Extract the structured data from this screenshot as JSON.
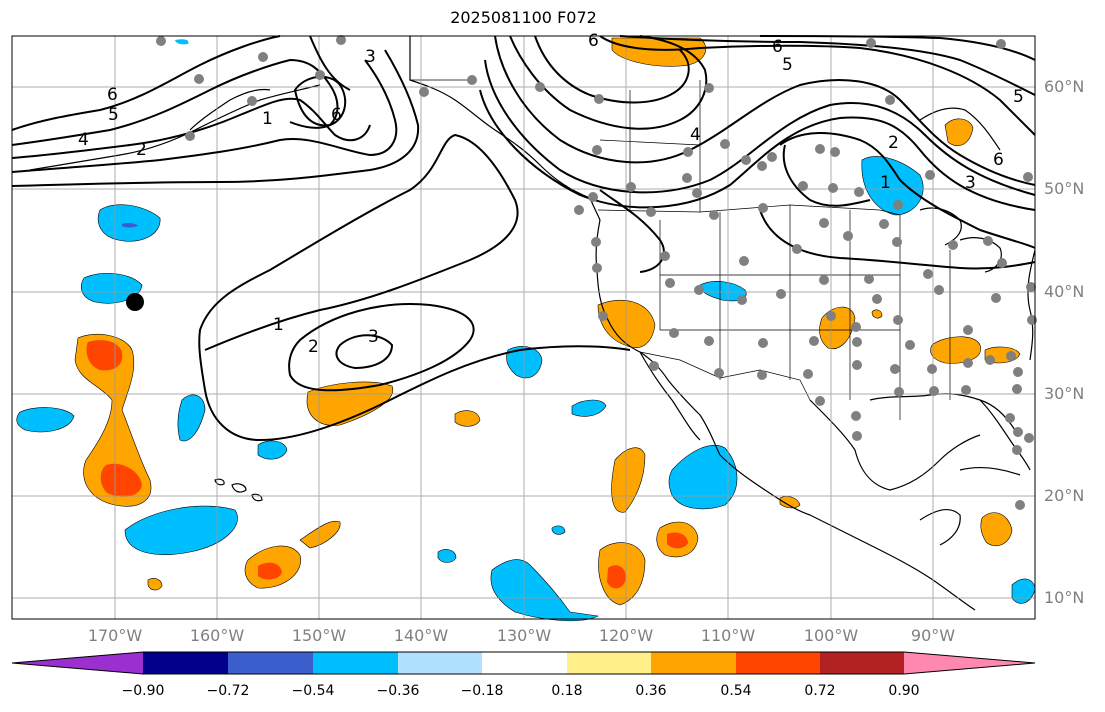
{
  "title": "2025081100 F072",
  "lon_labels": [
    "170°W",
    "160°W",
    "150°W",
    "140°W",
    "130°W",
    "120°W",
    "110°W",
    "100°W",
    "90°W"
  ],
  "lat_labels": [
    "60°N",
    "50°N",
    "40°N",
    "30°N",
    "20°N",
    "10°N"
  ],
  "contour_labels": [
    "1",
    "2",
    "3",
    "1",
    "2",
    "3",
    "4",
    "5",
    "6",
    "6",
    "5",
    "6",
    "6",
    "4",
    "2",
    "1",
    "3",
    "6",
    "5"
  ],
  "colorbar": {
    "ticks": [
      "−0.90",
      "−0.72",
      "−0.54",
      "−0.36",
      "−0.18",
      "0.18",
      "0.36",
      "0.54",
      "0.72",
      "0.90"
    ],
    "colors": [
      "#9b30d0",
      "#00008b",
      "#3a5fcd",
      "#00bfff",
      "#b0e2ff",
      "#ffffff",
      "#fff08a",
      "#ffa500",
      "#ff4500",
      "#b22222",
      "#ff88b0"
    ]
  }
}
